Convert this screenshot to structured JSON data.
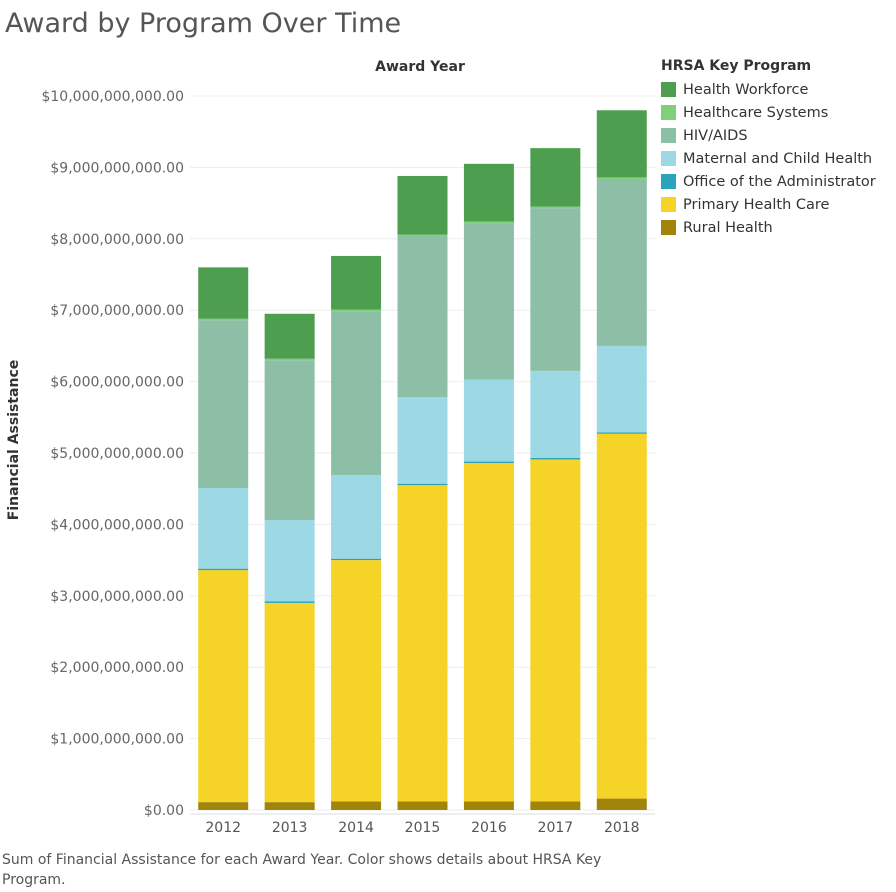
{
  "title": "Award by Program Over Time",
  "caption": "Sum of Financial Assistance for each Award Year.  Color shows details about HRSA Key Program.",
  "legend": {
    "title": "HRSA Key Program",
    "items": [
      {
        "label": "Health Workforce",
        "color": "#4d9e4e"
      },
      {
        "label": "Healthcare Systems",
        "color": "#7ed07a"
      },
      {
        "label": "HIV/AIDS",
        "color": "#8cbfa5"
      },
      {
        "label": "Maternal and Child Health",
        "color": "#9dd9e4"
      },
      {
        "label": "Office of the Administrator",
        "color": "#2ba3bb"
      },
      {
        "label": "Primary Health Care",
        "color": "#f5d327"
      },
      {
        "label": "Rural Health",
        "color": "#a1850a"
      }
    ]
  },
  "chart_data": {
    "type": "bar",
    "stacked": true,
    "title": "Award by Program Over Time",
    "xlabel": "Award Year",
    "ylabel": "Financial Assistance",
    "x_axis_position": "top",
    "ylim": [
      0,
      10000000000
    ],
    "yticks": [
      0,
      1000000000,
      2000000000,
      3000000000,
      4000000000,
      5000000000,
      6000000000,
      7000000000,
      8000000000,
      9000000000,
      10000000000
    ],
    "ytick_labels": [
      "$0.00",
      "$1,000,000,000.00",
      "$2,000,000,000.00",
      "$3,000,000,000.00",
      "$4,000,000,000.00",
      "$5,000,000,000.00",
      "$6,000,000,000.00",
      "$7,000,000,000.00",
      "$8,000,000,000.00",
      "$9,000,000,000.00",
      "$10,000,000,000.00"
    ],
    "grid": true,
    "legend_position": "right",
    "categories": [
      "2012",
      "2013",
      "2014",
      "2015",
      "2016",
      "2017",
      "2018"
    ],
    "series": [
      {
        "name": "Rural Health",
        "color": "#a1850a",
        "values": [
          110000000,
          110000000,
          120000000,
          120000000,
          120000000,
          120000000,
          160000000
        ]
      },
      {
        "name": "Primary Health Care",
        "color": "#f5d327",
        "values": [
          3250000000,
          2790000000,
          3380000000,
          4430000000,
          4740000000,
          4790000000,
          5110000000
        ]
      },
      {
        "name": "Office of the Administrator",
        "color": "#2ba3bb",
        "values": [
          20000000,
          20000000,
          20000000,
          20000000,
          20000000,
          20000000,
          20000000
        ]
      },
      {
        "name": "Maternal and Child Health",
        "color": "#9dd9e4",
        "values": [
          1130000000,
          1140000000,
          1170000000,
          1210000000,
          1150000000,
          1220000000,
          1210000000
        ]
      },
      {
        "name": "HIV/AIDS",
        "color": "#8cbfa5",
        "values": [
          2350000000,
          2240000000,
          2290000000,
          2260000000,
          2190000000,
          2280000000,
          2330000000
        ]
      },
      {
        "name": "Healthcare Systems",
        "color": "#7ed07a",
        "values": [
          20000000,
          20000000,
          30000000,
          20000000,
          20000000,
          20000000,
          30000000
        ]
      },
      {
        "name": "Health Workforce",
        "color": "#4d9e4e",
        "values": [
          720000000,
          630000000,
          750000000,
          820000000,
          810000000,
          820000000,
          940000000
        ]
      }
    ]
  }
}
